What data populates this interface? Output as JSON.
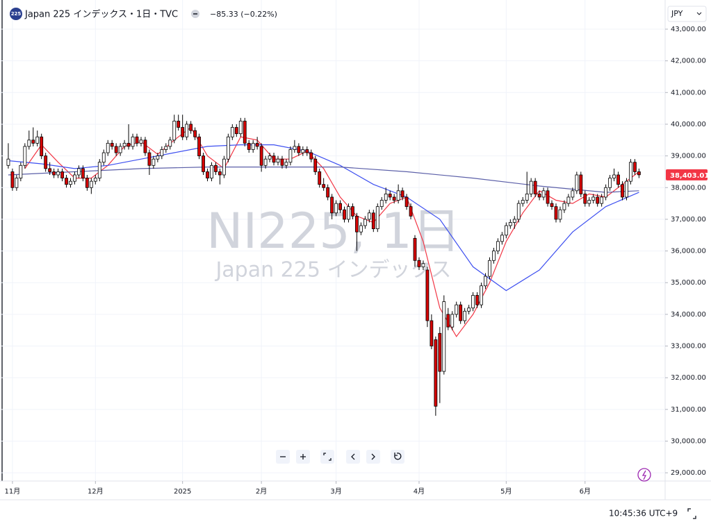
{
  "chart_data": {
    "type": "candlestick",
    "symbol_badge": "225",
    "title": "Japan 225 インデックス・1日・TVC",
    "change": "−85.33 (−0.22%)",
    "currency": "JPY",
    "watermark": "NI225, 1日",
    "watermark_subtitle": "Japan 225 インデックス",
    "time": "10:45:36 UTC+9",
    "last_price": {
      "value": 38403.01,
      "label": "38,403.01"
    },
    "up_color": "#ffffff",
    "down_color": "#d50000",
    "wick_color": "#000000",
    "grid": true,
    "ylim": [
      28740,
      43920
    ],
    "yticks": [
      {
        "value": 29000,
        "label": "29,000.00"
      },
      {
        "value": 30000,
        "label": "30,000.00"
      },
      {
        "value": 31000,
        "label": "31,000.00"
      },
      {
        "value": 32000,
        "label": "32,000.00"
      },
      {
        "value": 33000,
        "label": "33,000.00"
      },
      {
        "value": 34000,
        "label": "34,000.00"
      },
      {
        "value": 35000,
        "label": "35,000.00"
      },
      {
        "value": 36000,
        "label": "36,000.00"
      },
      {
        "value": 37000,
        "label": "37,000.00"
      },
      {
        "value": 38000,
        "label": "38,000.00"
      },
      {
        "value": 39000,
        "label": "39,000.00"
      },
      {
        "value": 40000,
        "label": "40,000.00"
      },
      {
        "value": 41000,
        "label": "41,000.00"
      },
      {
        "value": 42000,
        "label": "42,000.00"
      },
      {
        "value": 43000,
        "label": "43,000.00"
      }
    ],
    "xlim": [
      -2,
      158.3
    ],
    "xticks": [
      {
        "value": 1,
        "label": "11月"
      },
      {
        "value": 21,
        "label": "12月"
      },
      {
        "value": 42,
        "label": "2025"
      },
      {
        "value": 61,
        "label": "2月"
      },
      {
        "value": 79,
        "label": "3月"
      },
      {
        "value": 99,
        "label": "4月"
      },
      {
        "value": 120,
        "label": "5月"
      },
      {
        "value": 139,
        "label": "6月"
      }
    ],
    "ohlc": [
      [
        38700,
        39400,
        38600,
        38900
      ],
      [
        38500,
        38600,
        37900,
        38000
      ],
      [
        38000,
        38400,
        37900,
        38300
      ],
      [
        38300,
        38800,
        38200,
        38700
      ],
      [
        38700,
        39400,
        38600,
        39300
      ],
      [
        39300,
        39800,
        39200,
        39500
      ],
      [
        39500,
        39900,
        39300,
        39400
      ],
      [
        39400,
        39800,
        39300,
        39600
      ],
      [
        39600,
        39700,
        38900,
        39000
      ],
      [
        39000,
        39100,
        38500,
        38600
      ],
      [
        38600,
        38800,
        38400,
        38500
      ],
      [
        38500,
        38600,
        38300,
        38400
      ],
      [
        38400,
        38600,
        38300,
        38500
      ],
      [
        38500,
        38600,
        38200,
        38300
      ],
      [
        38300,
        38400,
        38000,
        38100
      ],
      [
        38100,
        38300,
        38000,
        38200
      ],
      [
        38200,
        38500,
        38100,
        38400
      ],
      [
        38400,
        38700,
        38300,
        38600
      ],
      [
        38600,
        38700,
        38200,
        38300
      ],
      [
        38300,
        38400,
        37900,
        38000
      ],
      [
        38000,
        38300,
        37800,
        38200
      ],
      [
        38200,
        38400,
        38100,
        38300
      ],
      [
        38300,
        38900,
        38200,
        38800
      ],
      [
        38800,
        39200,
        38700,
        39100
      ],
      [
        39100,
        39500,
        39000,
        39400
      ],
      [
        39400,
        39500,
        39200,
        39300
      ],
      [
        39300,
        39400,
        39000,
        39100
      ],
      [
        39100,
        39400,
        39000,
        39300
      ],
      [
        39300,
        39500,
        39200,
        39400
      ],
      [
        39400,
        40000,
        39200,
        39300
      ],
      [
        39300,
        39700,
        39200,
        39600
      ],
      [
        39600,
        39700,
        39300,
        39400
      ],
      [
        39400,
        39600,
        39300,
        39500
      ],
      [
        39500,
        39600,
        39000,
        39100
      ],
      [
        39100,
        39200,
        38400,
        38700
      ],
      [
        38700,
        39000,
        38600,
        38900
      ],
      [
        38900,
        39100,
        38800,
        39000
      ],
      [
        39000,
        39300,
        38900,
        39200
      ],
      [
        39200,
        39400,
        39100,
        39300
      ],
      [
        39300,
        39600,
        39200,
        39500
      ],
      [
        39500,
        40300,
        39400,
        40100
      ],
      [
        40100,
        40300,
        39800,
        39900
      ],
      [
        39900,
        40300,
        39500,
        39600
      ],
      [
        39600,
        40100,
        39500,
        40000
      ],
      [
        40000,
        40100,
        39700,
        39800
      ],
      [
        39800,
        39900,
        39500,
        39600
      ],
      [
        39600,
        39700,
        38900,
        39000
      ],
      [
        39000,
        39100,
        38400,
        38500
      ],
      [
        38500,
        38600,
        38200,
        38300
      ],
      [
        38300,
        38800,
        38200,
        38700
      ],
      [
        38700,
        38800,
        38400,
        38500
      ],
      [
        38500,
        38600,
        38100,
        38400
      ],
      [
        38400,
        39000,
        38300,
        38900
      ],
      [
        38900,
        39700,
        38800,
        39600
      ],
      [
        39600,
        40000,
        39500,
        39900
      ],
      [
        39900,
        40000,
        39600,
        39700
      ],
      [
        39700,
        40200,
        39600,
        40100
      ],
      [
        40100,
        40200,
        39300,
        39400
      ],
      [
        39400,
        39500,
        39100,
        39200
      ],
      [
        39200,
        39500,
        39100,
        39400
      ],
      [
        39400,
        39600,
        39200,
        39300
      ],
      [
        39300,
        39400,
        38500,
        38700
      ],
      [
        38700,
        39000,
        38600,
        38900
      ],
      [
        38900,
        39100,
        38800,
        39000
      ],
      [
        39000,
        39100,
        38700,
        38800
      ],
      [
        38800,
        39000,
        38700,
        38900
      ],
      [
        38900,
        39000,
        38600,
        38700
      ],
      [
        38700,
        38900,
        38600,
        38800
      ],
      [
        38800,
        39300,
        38700,
        39200
      ],
      [
        39200,
        39500,
        39100,
        39300
      ],
      [
        39300,
        39400,
        39000,
        39100
      ],
      [
        39100,
        39300,
        39000,
        39200
      ],
      [
        39200,
        39300,
        39000,
        39100
      ],
      [
        39100,
        39200,
        38800,
        38900
      ],
      [
        38900,
        39000,
        38400,
        38500
      ],
      [
        38500,
        38600,
        38000,
        38100
      ],
      [
        38100,
        38300,
        37900,
        38000
      ],
      [
        38000,
        38100,
        37600,
        37700
      ],
      [
        37700,
        37800,
        37000,
        37200
      ],
      [
        37200,
        37600,
        37100,
        37500
      ],
      [
        37500,
        37600,
        37200,
        37300
      ],
      [
        37300,
        37400,
        36900,
        37000
      ],
      [
        37000,
        37500,
        36900,
        37400
      ],
      [
        37400,
        37500,
        37000,
        37100
      ],
      [
        37100,
        37200,
        36000,
        36600
      ],
      [
        36600,
        36900,
        36500,
        36800
      ],
      [
        36800,
        37100,
        36700,
        37000
      ],
      [
        37000,
        37300,
        36900,
        37200
      ],
      [
        37200,
        37300,
        36600,
        36700
      ],
      [
        36700,
        37500,
        36600,
        37400
      ],
      [
        37400,
        37700,
        37300,
        37600
      ],
      [
        37600,
        38000,
        37500,
        37800
      ],
      [
        37800,
        37900,
        37600,
        37700
      ],
      [
        37700,
        37800,
        37500,
        37600
      ],
      [
        37600,
        38100,
        37500,
        37900
      ],
      [
        37900,
        38000,
        37600,
        37700
      ],
      [
        37700,
        37800,
        37300,
        37400
      ],
      [
        37400,
        37500,
        37000,
        37100
      ],
      [
        36400,
        36500,
        35500,
        35700
      ],
      [
        35700,
        35800,
        35400,
        35500
      ],
      [
        35500,
        35700,
        35400,
        35600
      ],
      [
        35400,
        35500,
        33600,
        33800
      ],
      [
        33800,
        34000,
        32900,
        33000
      ],
      [
        33200,
        33300,
        30800,
        31100
      ],
      [
        33400,
        33600,
        31200,
        32200
      ],
      [
        32200,
        34600,
        32100,
        34400
      ],
      [
        34000,
        34200,
        33500,
        33600
      ],
      [
        33600,
        34100,
        33500,
        34000
      ],
      [
        34000,
        34400,
        33900,
        34300
      ],
      [
        34300,
        34400,
        33700,
        33800
      ],
      [
        33800,
        34200,
        33700,
        34100
      ],
      [
        34100,
        34300,
        34000,
        34200
      ],
      [
        34200,
        34700,
        34100,
        34600
      ],
      [
        34600,
        34700,
        34200,
        34300
      ],
      [
        34300,
        35000,
        34200,
        34900
      ],
      [
        34900,
        35300,
        34800,
        35200
      ],
      [
        35200,
        35800,
        35100,
        35700
      ],
      [
        35700,
        36100,
        35600,
        36000
      ],
      [
        36000,
        36400,
        35900,
        36300
      ],
      [
        36300,
        36600,
        36200,
        36500
      ],
      [
        36500,
        36900,
        36400,
        36800
      ],
      [
        36800,
        37000,
        36700,
        36900
      ],
      [
        36900,
        37100,
        36700,
        37000
      ],
      [
        37000,
        37600,
        36900,
        37500
      ],
      [
        37500,
        37700,
        37400,
        37600
      ],
      [
        37600,
        38500,
        37500,
        37800
      ],
      [
        37800,
        38300,
        37700,
        38200
      ],
      [
        38200,
        38300,
        37700,
        37800
      ],
      [
        37800,
        37900,
        37600,
        37700
      ],
      [
        37700,
        38000,
        37600,
        37900
      ],
      [
        37900,
        38000,
        37400,
        37500
      ],
      [
        37500,
        37600,
        37300,
        37400
      ],
      [
        37400,
        37500,
        36900,
        37000
      ],
      [
        37000,
        37400,
        36900,
        37300
      ],
      [
        37300,
        37600,
        37200,
        37500
      ],
      [
        37500,
        37800,
        37400,
        37700
      ],
      [
        37700,
        38000,
        37600,
        37900
      ],
      [
        37900,
        38500,
        37800,
        38400
      ],
      [
        38400,
        38500,
        37700,
        37800
      ],
      [
        37800,
        37900,
        37400,
        37500
      ],
      [
        37500,
        37700,
        37400,
        37600
      ],
      [
        37600,
        37800,
        37500,
        37700
      ],
      [
        37700,
        37800,
        37400,
        37500
      ],
      [
        37500,
        37800,
        37400,
        37700
      ],
      [
        37700,
        38100,
        37600,
        38000
      ],
      [
        38000,
        38400,
        37900,
        38300
      ],
      [
        38300,
        38600,
        38200,
        38400
      ],
      [
        38400,
        38500,
        38000,
        38100
      ],
      [
        38100,
        38200,
        37600,
        37700
      ],
      [
        37700,
        38300,
        37600,
        38200
      ],
      [
        38200,
        38900,
        38100,
        38800
      ],
      [
        38800,
        38900,
        38400,
        38500
      ],
      [
        38500,
        38600,
        38300,
        38403.01
      ]
    ],
    "moving_averages": [
      {
        "color": "#f23645",
        "x": [
          4,
          8,
          12,
          16,
          20,
          24,
          28,
          32,
          36,
          40,
          44,
          48,
          52,
          56,
          60,
          64,
          68,
          72,
          76,
          80,
          84,
          88,
          92,
          96,
          100,
          104,
          108,
          112,
          116,
          120,
          124,
          128,
          132,
          136,
          140,
          144,
          148,
          152
        ],
        "values": [
          38600,
          39350,
          38800,
          38300,
          38300,
          38700,
          39300,
          39450,
          39050,
          39500,
          39900,
          39000,
          38600,
          39600,
          39500,
          38900,
          38900,
          39150,
          38600,
          37700,
          37100,
          36900,
          37500,
          37700,
          36300,
          34200,
          33300,
          34000,
          35000,
          36300,
          37200,
          37900,
          37600,
          37500,
          37800,
          37700,
          38100,
          38500
        ]
      },
      {
        "color": "#3d4ff0",
        "x": [
          0,
          8,
          16,
          24,
          32,
          40,
          48,
          56,
          64,
          72,
          80,
          88,
          96,
          104,
          112,
          120,
          128,
          136,
          144,
          152
        ],
        "values": [
          38850,
          38750,
          38600,
          38700,
          38900,
          39100,
          39300,
          39350,
          39350,
          39150,
          38700,
          38100,
          37700,
          37000,
          35500,
          34750,
          35400,
          36600,
          37400,
          37850
        ]
      },
      {
        "color": "#5b5fa8",
        "x": [
          0,
          16,
          32,
          48,
          64,
          80,
          96,
          112,
          128,
          144,
          152
        ],
        "values": [
          38400,
          38500,
          38600,
          38650,
          38650,
          38650,
          38500,
          38300,
          38050,
          37850,
          37900
        ]
      }
    ]
  }
}
